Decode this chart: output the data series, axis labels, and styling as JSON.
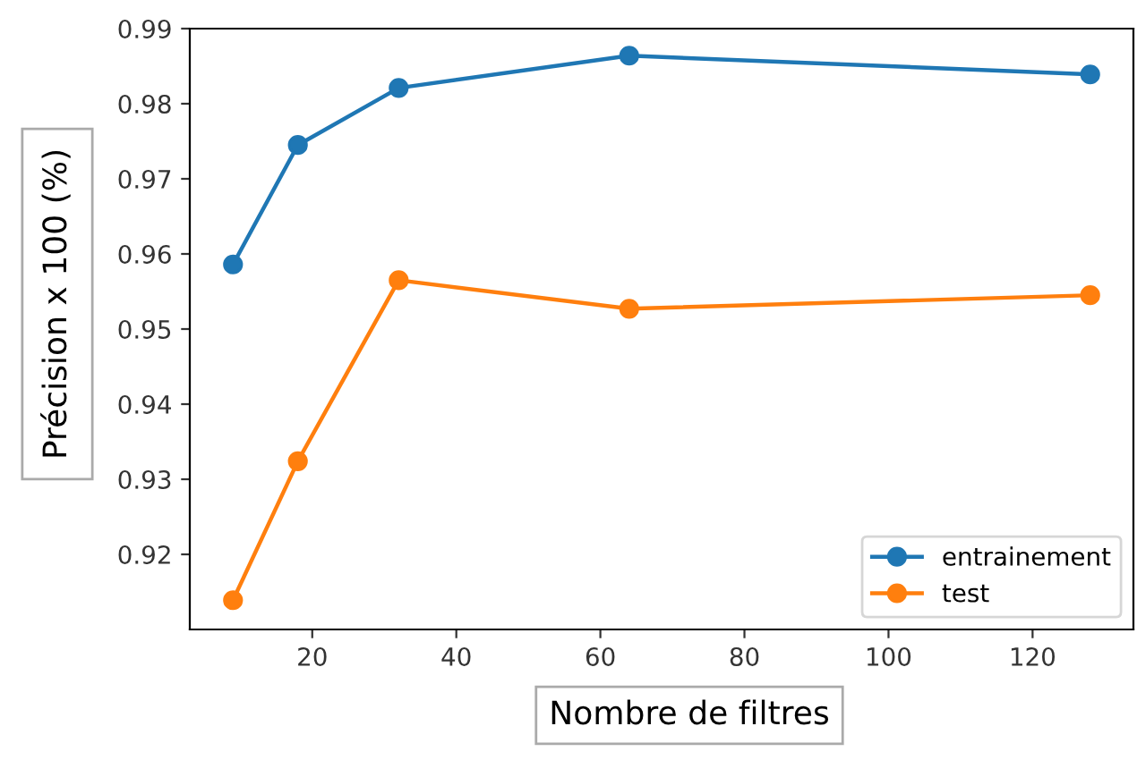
{
  "chart_data": {
    "type": "line",
    "xlabel": "Nombre de filtres",
    "ylabel": "Précision x 100 (%)",
    "x": [
      9,
      18,
      32,
      64,
      128
    ],
    "series": [
      {
        "name": "entrainement",
        "color": "#1f77b4",
        "values": [
          0.9586,
          0.9745,
          0.9821,
          0.9864,
          0.9839
        ]
      },
      {
        "name": "test",
        "color": "#ff7f0e",
        "values": [
          0.9139,
          0.9324,
          0.9565,
          0.9527,
          0.9545
        ]
      }
    ],
    "xlim": [
      3,
      134
    ],
    "ylim": [
      0.91,
      0.99
    ],
    "xticks": [
      20,
      40,
      60,
      80,
      100,
      120
    ],
    "yticks": [
      0.92,
      0.93,
      0.94,
      0.95,
      0.96,
      0.97,
      0.98,
      0.99
    ],
    "marker": "circle",
    "line_style": "solid",
    "grid": false,
    "legend": "bottom right"
  }
}
